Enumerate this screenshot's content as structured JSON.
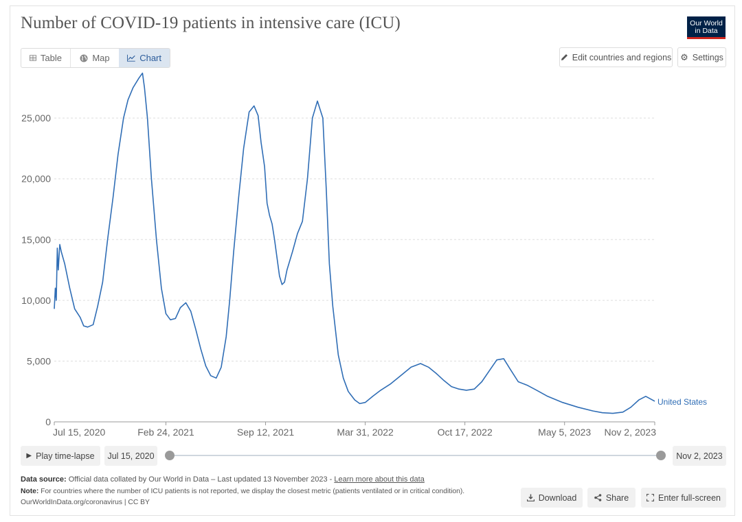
{
  "title": "Number of COVID-19 patients in intensive care (ICU)",
  "logo": {
    "line1": "Our World",
    "line2": "in Data"
  },
  "tabs": [
    {
      "label": "Table",
      "icon": "table-icon"
    },
    {
      "label": "Map",
      "icon": "globe-icon"
    },
    {
      "label": "Chart",
      "icon": "line-chart-icon",
      "active": true
    }
  ],
  "header_buttons": {
    "edit_label": "Edit countries and regions",
    "settings_label": "Settings"
  },
  "timeline": {
    "play_label": "Play time-lapse",
    "start_label": "Jul 15, 2020",
    "end_label": "Nov 2, 2023"
  },
  "footer": {
    "source_label": "Data source:",
    "source_text": "Official data collated by Our World in Data – Last updated 13 November 2023 - ",
    "source_link": "Learn more about this data",
    "note_label": "Note:",
    "note_text": "For countries where the number of ICU patients is not reported, we display the closest metric (patients ventilated or in critical condition).",
    "credit": "OurWorldInData.org/coronavirus | CC BY"
  },
  "footer_buttons": {
    "download_label": "Download",
    "share_label": "Share",
    "fullscreen_label": "Enter full-screen"
  },
  "colors": {
    "series": "#2f6db5",
    "accent_bg": "#dbe5f0",
    "logo_bg": "#002147",
    "logo_bar": "#ce261e"
  },
  "chart_data": {
    "type": "line",
    "title": "Number of COVID-19 patients in intensive care (ICU)",
    "y_ticks": [
      0,
      5000,
      10000,
      15000,
      20000,
      25000
    ],
    "y_tick_labels": [
      "0",
      "5,000",
      "10,000",
      "15,000",
      "20,000",
      "25,000"
    ],
    "x_ticks": [
      "2020-07-15",
      "2021-02-24",
      "2021-09-12",
      "2022-03-31",
      "2022-10-17",
      "2023-05-05",
      "2023-11-02"
    ],
    "x_tick_labels": [
      "Jul 15, 2020",
      "Feb 24, 2021",
      "Sep 12, 2021",
      "Mar 31, 2022",
      "Oct 17, 2022",
      "May 5, 2023",
      "Nov 2, 2023"
    ],
    "xlim": [
      "2020-07-15",
      "2023-11-02"
    ],
    "ylim": [
      0,
      28000
    ],
    "grid": true,
    "series": [
      {
        "name": "United States",
        "x": [
          "2020-07-15",
          "2020-07-17",
          "2020-07-19",
          "2020-07-21",
          "2020-07-23",
          "2020-07-26",
          "2020-07-29",
          "2020-08-05",
          "2020-08-15",
          "2020-08-25",
          "2020-09-05",
          "2020-09-12",
          "2020-09-20",
          "2020-10-01",
          "2020-10-10",
          "2020-10-20",
          "2020-10-30",
          "2020-11-10",
          "2020-11-20",
          "2020-12-01",
          "2020-12-10",
          "2020-12-20",
          "2021-01-01",
          "2021-01-08",
          "2021-01-12",
          "2021-01-18",
          "2021-01-26",
          "2021-02-05",
          "2021-02-15",
          "2021-02-24",
          "2021-03-05",
          "2021-03-15",
          "2021-03-25",
          "2021-04-05",
          "2021-04-15",
          "2021-04-25",
          "2021-05-05",
          "2021-05-15",
          "2021-05-25",
          "2021-06-05",
          "2021-06-15",
          "2021-06-25",
          "2021-07-02",
          "2021-07-10",
          "2021-07-20",
          "2021-07-30",
          "2021-08-10",
          "2021-08-20",
          "2021-08-28",
          "2021-09-03",
          "2021-09-10",
          "2021-09-15",
          "2021-09-20",
          "2021-09-25",
          "2021-09-30",
          "2021-10-05",
          "2021-10-10",
          "2021-10-15",
          "2021-10-20",
          "2021-10-25",
          "2021-11-05",
          "2021-11-15",
          "2021-11-25",
          "2021-12-05",
          "2021-12-15",
          "2021-12-25",
          "2022-01-05",
          "2022-01-12",
          "2022-01-18",
          "2022-01-25",
          "2022-02-05",
          "2022-02-15",
          "2022-02-25",
          "2022-03-10",
          "2022-03-20",
          "2022-03-31",
          "2022-04-15",
          "2022-05-01",
          "2022-05-20",
          "2022-06-10",
          "2022-07-01",
          "2022-07-20",
          "2022-08-05",
          "2022-08-20",
          "2022-09-05",
          "2022-09-20",
          "2022-10-05",
          "2022-10-20",
          "2022-11-05",
          "2022-11-20",
          "2022-12-05",
          "2022-12-20",
          "2023-01-03",
          "2023-01-15",
          "2023-02-01",
          "2023-02-20",
          "2023-03-10",
          "2023-04-01",
          "2023-05-01",
          "2023-06-01",
          "2023-07-01",
          "2023-07-20",
          "2023-08-10",
          "2023-08-30",
          "2023-09-15",
          "2023-10-01",
          "2023-10-15",
          "2023-11-02"
        ],
        "y": [
          9300,
          11000,
          10000,
          14300,
          12500,
          14600,
          14000,
          13000,
          11000,
          9300,
          8600,
          7900,
          7800,
          8000,
          9500,
          11500,
          15000,
          18500,
          22000,
          25000,
          26500,
          27500,
          28300,
          28700,
          27500,
          25000,
          20000,
          15000,
          11000,
          8900,
          8400,
          8500,
          9400,
          9800,
          9100,
          7600,
          6000,
          4600,
          3800,
          3600,
          4500,
          7000,
          10000,
          14000,
          18500,
          22500,
          25500,
          26000,
          25200,
          23000,
          21000,
          18000,
          17000,
          16300,
          15000,
          13500,
          12000,
          11300,
          11500,
          12500,
          14000,
          15500,
          16500,
          20000,
          25000,
          26400,
          25000,
          19000,
          13000,
          9500,
          5500,
          3600,
          2500,
          1800,
          1500,
          1600,
          2100,
          2600,
          3100,
          3800,
          4500,
          4800,
          4500,
          4000,
          3400,
          2900,
          2700,
          2600,
          2700,
          3300,
          4200,
          5100,
          5200,
          4400,
          3300,
          3000,
          2600,
          2100,
          1600,
          1200,
          900,
          750,
          700,
          800,
          1200,
          1800,
          2100,
          1700
        ]
      }
    ]
  }
}
